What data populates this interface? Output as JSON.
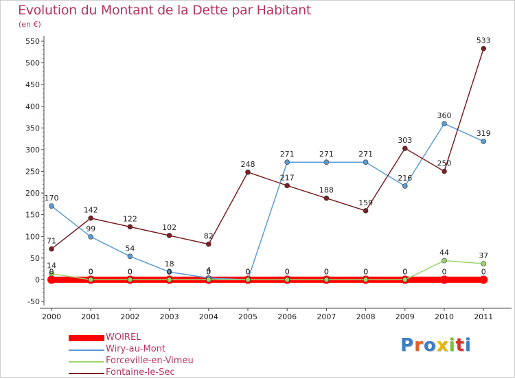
{
  "header": {
    "title": "Evolution du Montant de la Dette par Habitant",
    "unit": "(en €)"
  },
  "logo": {
    "text": "Proxiti",
    "colors": [
      "#3b7fc4",
      "#e0602a",
      "#3b7fc4",
      "#e8b800",
      "#7bbf3c",
      "#d8332c",
      "#3b7fc4"
    ]
  },
  "chart_data": {
    "type": "line",
    "title": "Evolution du Montant de la Dette par Habitant",
    "ylabel": "(en €)",
    "xlabel": "",
    "x": [
      "2000",
      "2001",
      "2002",
      "2003",
      "2004",
      "2005",
      "2006",
      "2007",
      "2008",
      "2009",
      "2010",
      "2011"
    ],
    "ylim": [
      -50,
      550
    ],
    "yticks": [
      -50,
      0,
      50,
      100,
      150,
      200,
      250,
      300,
      350,
      400,
      450,
      500,
      550
    ],
    "grid": false,
    "legend": "bottom-left",
    "series": [
      {
        "name": "WOIREL",
        "color": "#ff0000",
        "values": [
          0,
          0,
          0,
          0,
          0,
          0,
          0,
          0,
          0,
          0,
          0,
          0
        ],
        "labels": [
          "0",
          "0",
          "0",
          "0",
          "0",
          "0",
          "0",
          "0",
          "0",
          "0",
          "0",
          "0"
        ]
      },
      {
        "name": "Wiry-au-Mont",
        "color": "#5b9bd5",
        "values": [
          170,
          99,
          54,
          18,
          4,
          0,
          271,
          271,
          271,
          216,
          360,
          319
        ],
        "labels": [
          "170",
          "99",
          "54",
          "18",
          "4",
          "0",
          "271",
          "271",
          "271",
          "216",
          "360",
          "319"
        ]
      },
      {
        "name": "Forceville-en-Vimeu",
        "color": "#9ad56b",
        "values": [
          14,
          0,
          0,
          0,
          0,
          0,
          0,
          0,
          0,
          0,
          44,
          37
        ],
        "labels": [
          "14",
          "0",
          "0",
          "0",
          "0",
          "0",
          "0",
          "0",
          "0",
          "0",
          "44",
          "37"
        ]
      },
      {
        "name": "Fontaine-le-Sec",
        "color": "#7a1f24",
        "values": [
          71,
          142,
          122,
          102,
          82,
          248,
          217,
          188,
          159,
          303,
          250,
          533
        ],
        "labels": [
          "71",
          "142",
          "122",
          "102",
          "82",
          "248",
          "217",
          "188",
          "159",
          "303",
          "250",
          "533"
        ]
      }
    ]
  }
}
